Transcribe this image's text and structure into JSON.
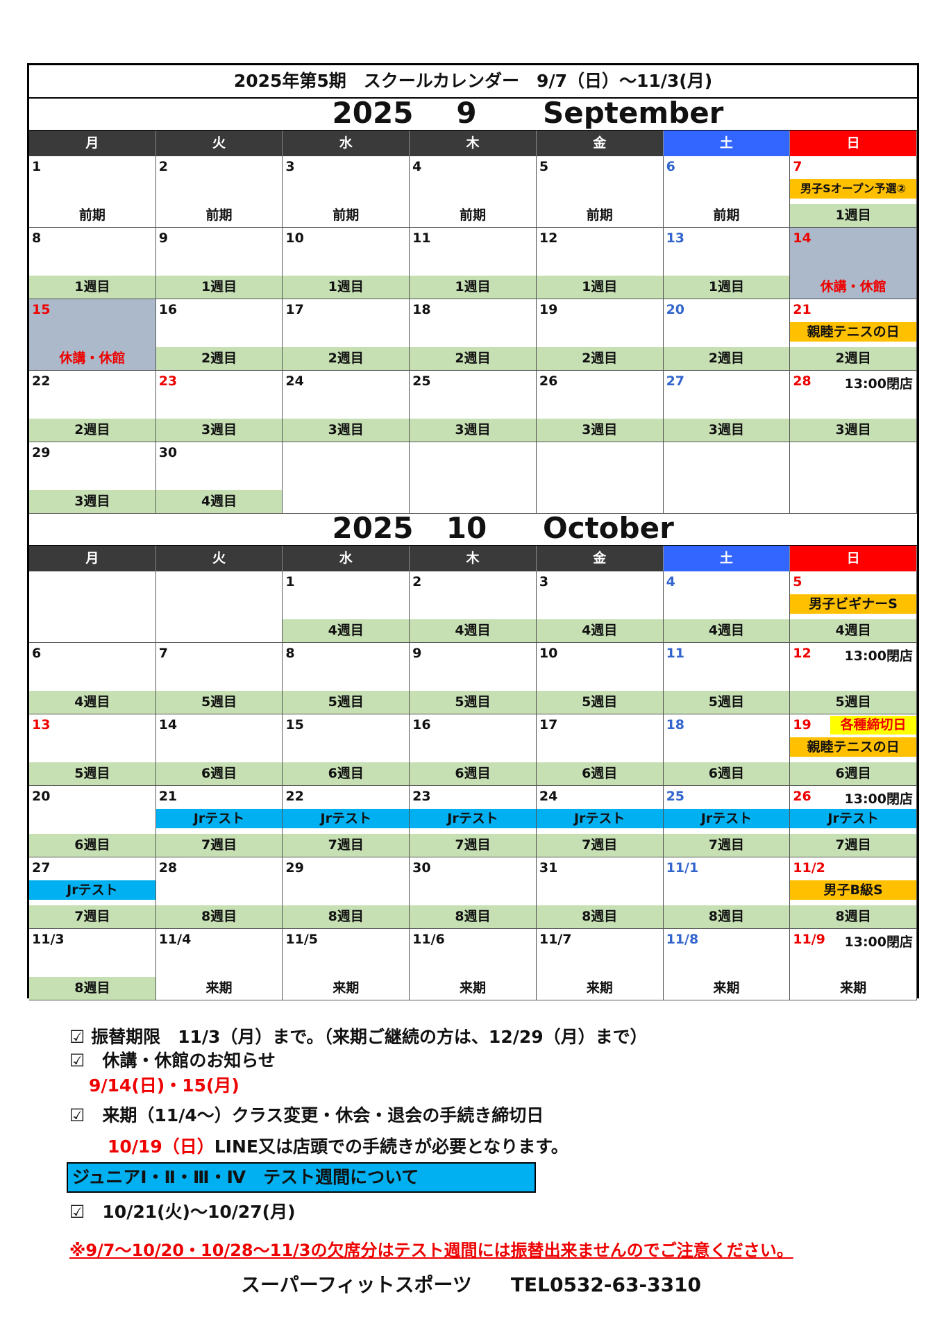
{
  "header": {
    "title": "2025年第5期　スクールカレンダー　9/7（日）～11/3(月)"
  },
  "months": [
    {
      "year": "2025",
      "month": "9",
      "name": "September",
      "weekdays": [
        "月",
        "火",
        "水",
        "木",
        "金",
        "土",
        "日"
      ],
      "weeks": [
        [
          {
            "day": "1",
            "label": "前期"
          },
          {
            "day": "2",
            "label": "前期"
          },
          {
            "day": "3",
            "label": "前期"
          },
          {
            "day": "4",
            "label": "前期"
          },
          {
            "day": "5",
            "label": "前期"
          },
          {
            "day": "6",
            "label": "前期"
          },
          {
            "day": "7",
            "event": "男子Sオープン予選②",
            "event_color": "orange",
            "label": "1週目",
            "band": true
          }
        ],
        [
          {
            "day": "8",
            "label": "1週目",
            "band": true
          },
          {
            "day": "9",
            "label": "1週目",
            "band": true
          },
          {
            "day": "10",
            "label": "1週目",
            "band": true
          },
          {
            "day": "11",
            "label": "1週目",
            "band": true
          },
          {
            "day": "12",
            "label": "1週目",
            "band": true
          },
          {
            "day": "13",
            "label": "1週目",
            "band": true
          },
          {
            "day": "14",
            "label": "休講・休館",
            "closed": true
          }
        ],
        [
          {
            "day": "15",
            "holiday": true,
            "label": "休講・休館",
            "closed": true
          },
          {
            "day": "16",
            "label": "2週目",
            "band": true
          },
          {
            "day": "17",
            "label": "2週目",
            "band": true
          },
          {
            "day": "18",
            "label": "2週目",
            "band": true
          },
          {
            "day": "19",
            "label": "2週目",
            "band": true
          },
          {
            "day": "20",
            "label": "2週目",
            "band": true
          },
          {
            "day": "21",
            "event": "親睦テニスの日",
            "event_color": "orange",
            "label": "2週目",
            "band": true
          }
        ],
        [
          {
            "day": "22",
            "label": "2週目",
            "band": true
          },
          {
            "day": "23",
            "holiday": true,
            "label": "3週目",
            "band": true
          },
          {
            "day": "24",
            "label": "3週目",
            "band": true
          },
          {
            "day": "25",
            "label": "3週目",
            "band": true
          },
          {
            "day": "26",
            "label": "3週目",
            "band": true
          },
          {
            "day": "27",
            "label": "3週目",
            "band": true
          },
          {
            "day": "28",
            "note": "13:00閉店",
            "label": "3週目",
            "band": true
          }
        ],
        [
          {
            "day": "29",
            "label": "3週目",
            "band": true
          },
          {
            "day": "30",
            "label": "4週目",
            "band": true
          },
          null,
          null,
          null,
          null,
          null
        ]
      ]
    },
    {
      "year": "2025",
      "month": "10",
      "name": "October",
      "weekdays": [
        "月",
        "火",
        "水",
        "木",
        "金",
        "土",
        "日"
      ],
      "weeks": [
        [
          null,
          null,
          {
            "day": "1",
            "label": "4週目",
            "band": true
          },
          {
            "day": "2",
            "label": "4週目",
            "band": true
          },
          {
            "day": "3",
            "label": "4週目",
            "band": true
          },
          {
            "day": "4",
            "label": "4週目",
            "band": true
          },
          {
            "day": "5",
            "event": "男子ビギナーS",
            "event_color": "orange",
            "label": "4週目",
            "band": true
          }
        ],
        [
          {
            "day": "6",
            "label": "4週目",
            "band": true
          },
          {
            "day": "7",
            "label": "5週目",
            "band": true
          },
          {
            "day": "8",
            "label": "5週目",
            "band": true
          },
          {
            "day": "9",
            "label": "5週目",
            "band": true
          },
          {
            "day": "10",
            "label": "5週目",
            "band": true
          },
          {
            "day": "11",
            "label": "5週目",
            "band": true
          },
          {
            "day": "12",
            "note": "13:00閉店",
            "label": "5週目",
            "band": true
          }
        ],
        [
          {
            "day": "13",
            "holiday": true,
            "label": "5週目",
            "band": true
          },
          {
            "day": "14",
            "label": "6週目",
            "band": true
          },
          {
            "day": "15",
            "label": "6週目",
            "band": true
          },
          {
            "day": "16",
            "label": "6週目",
            "band": true
          },
          {
            "day": "17",
            "label": "6週目",
            "band": true
          },
          {
            "day": "18",
            "label": "6週目",
            "band": true
          },
          {
            "day": "19",
            "tag": "各種締切日",
            "event": "親睦テニスの日",
            "event_color": "orange",
            "label": "6週目",
            "band": true
          }
        ],
        [
          {
            "day": "20",
            "label": "6週目",
            "band": true
          },
          {
            "day": "21",
            "event": "Jrテスト",
            "event_color": "blue",
            "label": "7週目",
            "band": true
          },
          {
            "day": "22",
            "event": "Jrテスト",
            "event_color": "blue",
            "label": "7週目",
            "band": true
          },
          {
            "day": "23",
            "event": "Jrテスト",
            "event_color": "blue",
            "label": "7週目",
            "band": true
          },
          {
            "day": "24",
            "event": "Jrテスト",
            "event_color": "blue",
            "label": "7週目",
            "band": true
          },
          {
            "day": "25",
            "event": "Jrテスト",
            "event_color": "blue",
            "label": "7週目",
            "band": true
          },
          {
            "day": "26",
            "note": "13:00閉店",
            "event": "Jrテスト",
            "event_color": "blue",
            "label": "7週目",
            "band": true
          }
        ],
        [
          {
            "day": "27",
            "event": "Jrテスト",
            "event_color": "blue",
            "label": "7週目",
            "band": true
          },
          {
            "day": "28",
            "label": "8週目",
            "band": true
          },
          {
            "day": "29",
            "label": "8週目",
            "band": true
          },
          {
            "day": "30",
            "label": "8週目",
            "band": true
          },
          {
            "day": "31",
            "label": "8週目",
            "band": true
          },
          {
            "day": "11/1",
            "label": "8週目",
            "band": true
          },
          {
            "day": "11/2",
            "event": "男子B級S",
            "event_color": "orange",
            "label": "8週目",
            "band": true
          }
        ],
        [
          {
            "day": "11/3",
            "label": "8週目",
            "band": true
          },
          {
            "day": "11/4",
            "label": "来期"
          },
          {
            "day": "11/5",
            "label": "来期"
          },
          {
            "day": "11/6",
            "label": "来期"
          },
          {
            "day": "11/7",
            "label": "来期"
          },
          {
            "day": "11/8",
            "label": "来期"
          },
          {
            "day": "11/9",
            "note": "13:00閉店",
            "label": "来期"
          }
        ]
      ]
    }
  ],
  "notes": {
    "deadline": "☑ 振替期限　11/3（月）まで。（来期ご継続の方は、12/29（月）まで）",
    "closure_heading": "☑　休講・休館のお知らせ",
    "closure_dates": "9/14(日)・15(月)",
    "procedure_heading": "☑　来期（11/4～）クラス変更・休会・退会の手続き締切日",
    "procedure_date": "10/19（日）",
    "procedure_text": "LINE又は店頭での手続きが必要となります。",
    "junior_banner": "ジュニアⅠ・Ⅱ・Ⅲ・Ⅳ　テスト週間について",
    "junior_dates": "☑　10/21(火)～10/27(月)",
    "warning": "※9/7～10/20・10/28～11/3の欠席分はテスト週間には振替出来ませんのでご注意ください。",
    "footer": "スーパーフィットスポーツ　　TEL0532-63-3310"
  }
}
